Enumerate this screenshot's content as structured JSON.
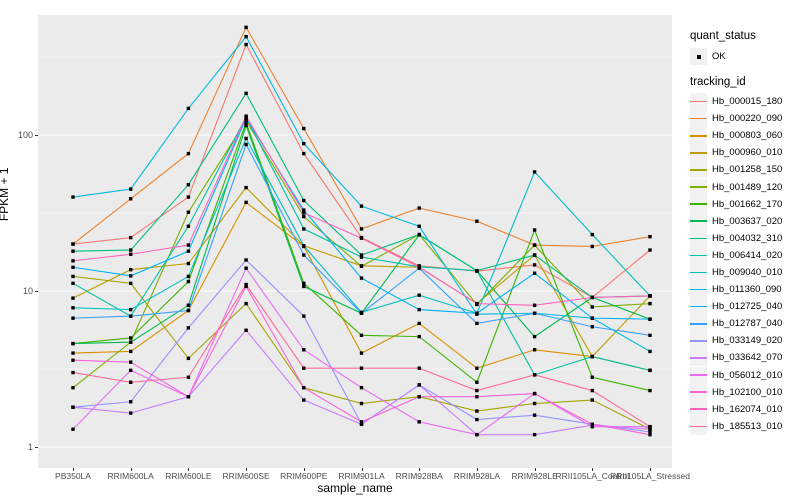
{
  "legend": {
    "quant_status_title": "quant_status",
    "quant_status_value": "OK",
    "tracking_id_title": "tracking_id",
    "key_bg": "#F2F2F2"
  },
  "colors": {
    "panel_bg": "#EBEBEB",
    "grid": "#FFFFFF",
    "tick_text": "#4D4D4D",
    "point": "#000000",
    "figure_bg": "#FFFFFF"
  },
  "chart_data": {
    "type": "line",
    "title": "",
    "xlabel": "sample_name",
    "ylabel": "FPKM + 1",
    "y_scale": "log10",
    "y_ticks": [
      1,
      10,
      100
    ],
    "ylim": [
      0.73,
      590
    ],
    "grid": "white major gridlines at 1,10,100 and minor at half-decades on gray panel",
    "legend_position": "right",
    "point_shape": "small black square (quant_status OK)",
    "categories": [
      "PB350LA",
      "RRIM600LA",
      "RRIM600LE",
      "RRIM600SE",
      "RRIM600PE",
      "RRIM901LA",
      "RRIM928BA",
      "RRIM928LA",
      "RRIM928LE",
      "RRII105LA_Control",
      "RRII105LA_Stressed"
    ],
    "series": [
      {
        "name": "Hb_000015_180",
        "color": "#F8766D",
        "values": [
          20,
          22,
          40,
          380,
          76,
          22,
          14.5,
          13.4,
          14.7,
          9.1,
          18.3
        ]
      },
      {
        "name": "Hb_000220_090",
        "color": "#EA8331",
        "values": [
          20,
          39,
          76,
          490,
          110,
          25,
          34,
          28,
          19.7,
          19.3,
          22.3
        ]
      },
      {
        "name": "Hb_000803_060",
        "color": "#D89000",
        "values": [
          4.0,
          4.1,
          7.5,
          37,
          19.3,
          4.0,
          6.2,
          3.2,
          4.2,
          3.8,
          3.1
        ]
      },
      {
        "name": "Hb_000960_010",
        "color": "#C09B00",
        "values": [
          9.0,
          13.7,
          15,
          46,
          19.5,
          14.5,
          14.2,
          8.3,
          17,
          3.8,
          9.3
        ]
      },
      {
        "name": "Hb_001258_150",
        "color": "#A3A500",
        "values": [
          12.4,
          11.2,
          3.7,
          8.3,
          2.4,
          1.9,
          2.1,
          1.7,
          1.9,
          2.0,
          1.3
        ]
      },
      {
        "name": "Hb_001489_120",
        "color": "#7CAE00",
        "values": [
          2.4,
          4.7,
          32,
          124,
          30,
          14.4,
          23,
          8.2,
          19.7,
          7.9,
          8.3
        ]
      },
      {
        "name": "Hb_001662_170",
        "color": "#39B600",
        "values": [
          4.6,
          5.0,
          11.5,
          120,
          11.2,
          5.2,
          5.1,
          2.6,
          24.6,
          2.8,
          2.3
        ]
      },
      {
        "name": "Hb_003637_020",
        "color": "#00BB4E",
        "values": [
          4.6,
          4.7,
          8.1,
          115,
          10.7,
          7.2,
          22.9,
          13.5,
          5.1,
          9.1,
          6.6
        ]
      },
      {
        "name": "Hb_004032_310",
        "color": "#00BF7D",
        "values": [
          18,
          18.3,
          48,
          185,
          38,
          17,
          23,
          13.5,
          17,
          9.1,
          9.3
        ]
      },
      {
        "name": "Hb_006414_020",
        "color": "#00C1A3",
        "values": [
          11.2,
          6.9,
          26,
          130,
          25,
          16.5,
          14.3,
          13.5,
          2.9,
          3.8,
          3.1
        ]
      },
      {
        "name": "Hb_009040_010",
        "color": "#00BFC4",
        "values": [
          7.8,
          7.6,
          12.4,
          95,
          19.5,
          7.3,
          9.4,
          7.2,
          58,
          23,
          9.3
        ]
      },
      {
        "name": "Hb_011360_090",
        "color": "#00BAE0",
        "values": [
          40,
          45,
          148,
          427,
          88,
          35,
          26,
          7.1,
          7.2,
          6.7,
          4.1
        ]
      },
      {
        "name": "Hb_012725_040",
        "color": "#00B0F6",
        "values": [
          14.2,
          12.5,
          18,
          128,
          33,
          12.1,
          7.6,
          7.2,
          13,
          6.7,
          6.6
        ]
      },
      {
        "name": "Hb_012787_040",
        "color": "#35A2FF",
        "values": [
          6.7,
          6.9,
          7.5,
          87,
          17,
          7.2,
          14.0,
          6.2,
          7.2,
          5.9,
          5.2
        ]
      },
      {
        "name": "Hb_033149_020",
        "color": "#9590FF",
        "values": [
          1.8,
          1.95,
          5.8,
          15.8,
          6.9,
          1.4,
          2.5,
          1.5,
          1.6,
          1.4,
          1.25
        ]
      },
      {
        "name": "Hb_033642_070",
        "color": "#C77CFF",
        "values": [
          1.8,
          1.65,
          2.1,
          5.6,
          2.0,
          1.4,
          2.5,
          1.2,
          1.2,
          1.38,
          1.3
        ]
      },
      {
        "name": "Hb_056012_010",
        "color": "#E76BF3",
        "values": [
          1.3,
          3.1,
          2.1,
          14,
          4.2,
          2.4,
          1.45,
          1.2,
          2.2,
          1.35,
          1.35
        ]
      },
      {
        "name": "Hb_102100_010",
        "color": "#FA62DB",
        "values": [
          3.6,
          3.5,
          2.1,
          10.7,
          2.4,
          1.45,
          2.1,
          2.1,
          2.2,
          1.4,
          1.2
        ]
      },
      {
        "name": "Hb_162074_010",
        "color": "#FF62BC",
        "values": [
          15.6,
          17.2,
          19.7,
          132,
          31.7,
          21.8,
          14.2,
          8.3,
          8.1,
          9.1,
          9.3
        ]
      },
      {
        "name": "Hb_185513_010",
        "color": "#FF6A98",
        "values": [
          3.0,
          2.6,
          2.8,
          11,
          3.2,
          3.2,
          3.2,
          2.3,
          2.9,
          2.3,
          1.35
        ]
      }
    ]
  }
}
